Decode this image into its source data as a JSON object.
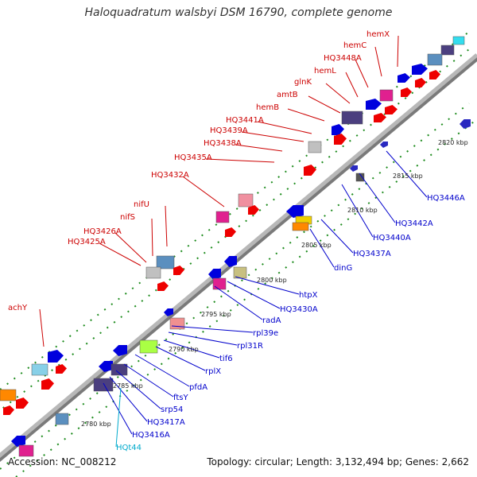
{
  "title": "Haloquadratum walsbyi DSM 16790, complete genome",
  "footer": {
    "accession": "Accession: NC_008212",
    "topology": "Topology: circular; Length: 3,132,494 bp; Genes: 2,662"
  },
  "colors": {
    "forward_label": "#cc0000",
    "reverse_label": "#0000cc",
    "trna_label": "#00aacc",
    "backbone": "#a6a6a6",
    "dots": "#1e8c1e"
  },
  "ticks": [
    "2780 kbp",
    "2785 kbp",
    "2790 kbp",
    "2795 kbp",
    "2800 kbp",
    "2805 kbp",
    "2810 kbp",
    "2815 kbp",
    "2820 kbp"
  ],
  "forward_genes": [
    "hemX",
    "hemC",
    "HQ3448A",
    "hemL",
    "glnK",
    "amtB",
    "hemB",
    "HQ3441A",
    "HQ3439A",
    "HQ3438A",
    "HQ3435A",
    "HQ3432A",
    "nifU",
    "nifS",
    "HQ3426A",
    "HQ3425A",
    "achY"
  ],
  "reverse_genes": [
    "HQ3446A",
    "HQ3442A",
    "HQ3440A",
    "HQ3437A",
    "dinG",
    "htpX",
    "HQ3430A",
    "radA",
    "rpl39e",
    "rpl31R",
    "tif6",
    "rplX",
    "pfdA",
    "ftsY",
    "srp54",
    "HQ3417A",
    "HQ3416A",
    "HQt44"
  ]
}
